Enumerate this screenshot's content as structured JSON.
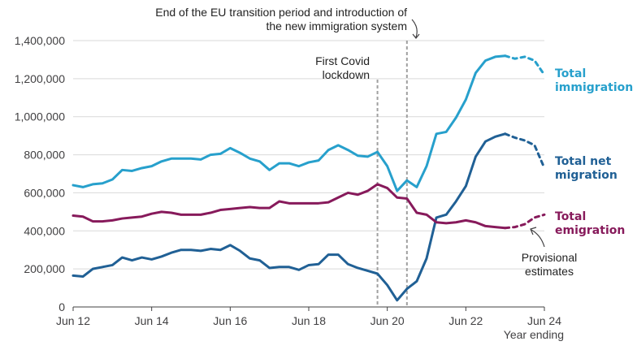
{
  "chart_data": {
    "type": "line",
    "xlabel": "Year ending",
    "ylim": [
      0,
      1400000
    ],
    "y_ticks": [
      0,
      200000,
      400000,
      600000,
      800000,
      1000000,
      1200000,
      1400000
    ],
    "y_tick_labels": [
      "0",
      "200,000",
      "400,000",
      "600,000",
      "800,000",
      "1,000,000",
      "1,200,000",
      "1,400,000"
    ],
    "x_tick_labels": [
      "Jun 12",
      "Jun 14",
      "Jun 16",
      "Jun 18",
      "Jun 20",
      "Jun 22",
      "Jun 24"
    ],
    "x_ticks": [
      "2012-06",
      "2014-06",
      "2016-06",
      "2018-06",
      "2020-06",
      "2022-06",
      "2024-06"
    ],
    "x_range": [
      "2012-06",
      "2024-06"
    ],
    "grid": "horizontal",
    "x": [
      "2012-06",
      "2012-09",
      "2012-12",
      "2013-03",
      "2013-06",
      "2013-09",
      "2013-12",
      "2014-03",
      "2014-06",
      "2014-09",
      "2014-12",
      "2015-03",
      "2015-06",
      "2015-09",
      "2015-12",
      "2016-03",
      "2016-06",
      "2016-09",
      "2016-12",
      "2017-03",
      "2017-06",
      "2017-09",
      "2017-12",
      "2018-03",
      "2018-06",
      "2018-09",
      "2018-12",
      "2019-03",
      "2019-06",
      "2019-09",
      "2019-12",
      "2020-03",
      "2020-06",
      "2020-09",
      "2020-12",
      "2021-03",
      "2021-06",
      "2021-09",
      "2021-12",
      "2022-03",
      "2022-06",
      "2022-09",
      "2022-12",
      "2023-03",
      "2023-06",
      "2023-09",
      "2023-12",
      "2024-03",
      "2024-06"
    ],
    "series": [
      {
        "name": "Total immigration",
        "color": "#27a0cc",
        "values": [
          640000,
          630000,
          645000,
          650000,
          670000,
          720000,
          715000,
          730000,
          740000,
          765000,
          780000,
          780000,
          780000,
          775000,
          800000,
          805000,
          835000,
          810000,
          780000,
          765000,
          720000,
          755000,
          755000,
          740000,
          760000,
          770000,
          825000,
          850000,
          825000,
          795000,
          790000,
          815000,
          740000,
          610000,
          665000,
          630000,
          740000,
          910000,
          920000,
          995000,
          1090000,
          1230000,
          1295000,
          1315000,
          1320000,
          1305000,
          1315000,
          1295000,
          1220000
        ],
        "provisional_from_index": 44
      },
      {
        "name": "Total net migration",
        "color": "#206095",
        "values": [
          165000,
          160000,
          200000,
          210000,
          220000,
          260000,
          245000,
          260000,
          250000,
          265000,
          285000,
          300000,
          300000,
          295000,
          305000,
          300000,
          325000,
          295000,
          255000,
          245000,
          205000,
          210000,
          210000,
          195000,
          220000,
          225000,
          275000,
          275000,
          225000,
          205000,
          190000,
          175000,
          115000,
          35000,
          95000,
          135000,
          255000,
          470000,
          485000,
          555000,
          635000,
          790000,
          870000,
          895000,
          910000,
          890000,
          875000,
          850000,
          730000
        ],
        "provisional_from_index": 44
      },
      {
        "name": "Total emigration",
        "color": "#871a5b",
        "values": [
          480000,
          475000,
          450000,
          450000,
          455000,
          465000,
          470000,
          475000,
          490000,
          500000,
          495000,
          485000,
          485000,
          485000,
          495000,
          510000,
          515000,
          520000,
          525000,
          520000,
          520000,
          555000,
          545000,
          545000,
          545000,
          545000,
          550000,
          575000,
          600000,
          590000,
          610000,
          645000,
          625000,
          575000,
          570000,
          495000,
          485000,
          445000,
          440000,
          445000,
          455000,
          445000,
          425000,
          420000,
          415000,
          420000,
          435000,
          470000,
          485000
        ],
        "provisional_from_index": 44
      }
    ],
    "series_labels": [
      {
        "lines": [
          "Total",
          "immigration"
        ],
        "color": "#27a0cc"
      },
      {
        "lines": [
          "Total net",
          "migration"
        ],
        "color": "#206095"
      },
      {
        "lines": [
          "Total",
          "emigration"
        ],
        "color": "#871a5b"
      }
    ],
    "annotations": {
      "covid": {
        "date": "2020-03",
        "lines": [
          "First Covid",
          "lockdown"
        ]
      },
      "transition": {
        "date": "2020-12",
        "lines": [
          "End of the EU transition period and introduction of",
          "the new immigration system"
        ]
      },
      "provisional": {
        "lines": [
          "Provisional",
          "estimates"
        ]
      }
    }
  }
}
